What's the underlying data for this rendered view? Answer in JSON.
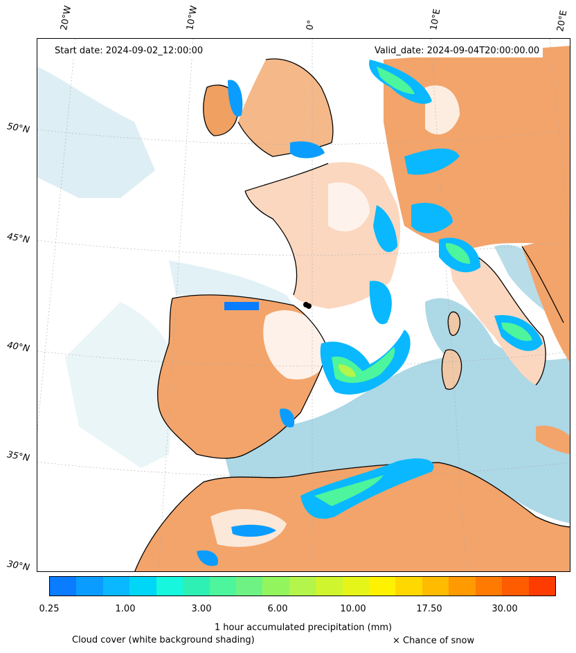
{
  "header": {
    "start_date": "Start date: 2024-09-02_12:00:00",
    "valid_date": "Valid_date: 2024-09-04T20:00:00.00"
  },
  "longitude_labels": [
    "20°W",
    "10°W",
    "0°",
    "10°E",
    "20°E"
  ],
  "latitude_labels": [
    "50°N",
    "45°N",
    "40°N",
    "35°N",
    "30°N"
  ],
  "colorbar": {
    "title": "1 hour accumulated precipitation (mm)",
    "tick_labels": [
      "0.25",
      "1.00",
      "3.00",
      "6.00",
      "10.00",
      "17.50",
      "30.00"
    ],
    "colors": [
      "#0a7cff",
      "#0a9dff",
      "#0ab8ff",
      "#00d7f7",
      "#17f7de",
      "#2ef0b4",
      "#4df59c",
      "#6ef284",
      "#93f55e",
      "#b3f54a",
      "#cff52e",
      "#e5f51a",
      "#fff200",
      "#ffd800",
      "#ffbb00",
      "#ff9a00",
      "#ff7a00",
      "#ff5c00",
      "#ff3c00"
    ]
  },
  "footer": {
    "cloud_note": "Cloud cover (white background shading)",
    "snow_note": "× Chance of snow"
  },
  "legend_colors": {
    "dry_land": "#f0a060",
    "sea": "#add8e6",
    "cloud": "#ffffff"
  }
}
